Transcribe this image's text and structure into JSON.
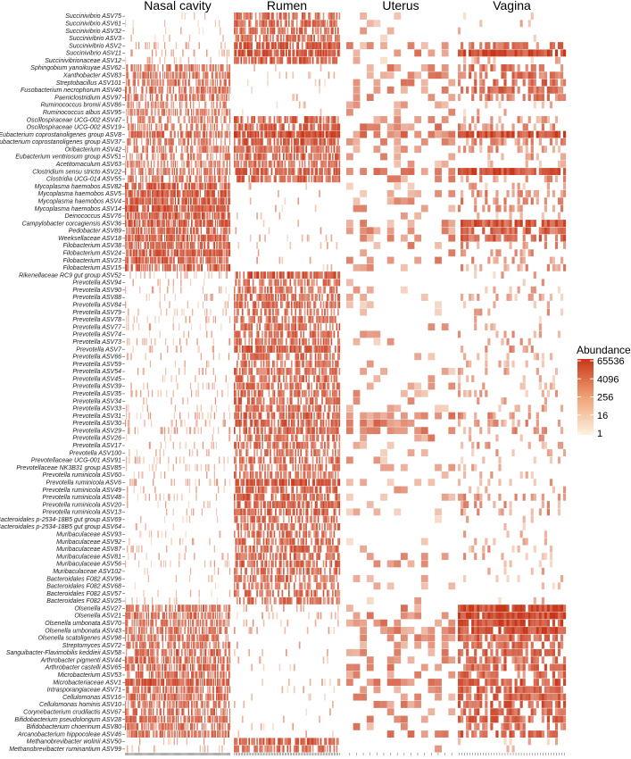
{
  "chart_data": {
    "type": "heatmap",
    "title": "",
    "xlabel": "",
    "ylabel": "",
    "panels": [
      {
        "name": "Nasal cavity",
        "columns": 110
      },
      {
        "name": "Rumen",
        "columns": 80
      },
      {
        "name": "Uterus",
        "columns": 16
      },
      {
        "name": "Vagina",
        "columns": 40
      }
    ],
    "rows": [
      "Succinivibrio ASV75",
      "Succinivibrio ASV61",
      "Succinivibrio ASV32",
      "Succinivibrio ASV3",
      "Succinivibrio ASV2",
      "Succinivibrio ASV11",
      "Succinivibrionaceae ASV12",
      "Sphingobium yanoikuyae ASV62",
      "Xanthobacter ASV83",
      "Streptobacillus ASV101",
      "Fusobacterium necrophorum ASV40",
      "Paeniclostridium ASV97",
      "Ruminococcus bromii ASV86",
      "Ruminococcus albus ASV95",
      "Oscillospiraceae UCG-002 ASV47",
      "Oscillospiraceae UCG-002 ASV19",
      "Eubacterium coprostanoligenes group ASV8",
      "Eubacterium coprostanoligenes group ASV37",
      "Oribacterium ASV42",
      "Eubacterium ventriosum group ASV51",
      "Acetitomaculum ASV63",
      "Clostridium sensu stricto ASV22",
      "Clostridia UCG-014 ASV55",
      "Mycoplasma haemobos ASV82",
      "Mycoplasma haemobos ASV5",
      "Mycoplasma haemobos ASV4",
      "Mycoplasma haemobos ASV14",
      "Deinococcus ASV76",
      "Campylobacter corcagiensis ASV36",
      "Pedobacter ASV89",
      "Weeksellaceae ASV18",
      "Filobacterium ASV38",
      "Filobacterium ASV24",
      "Filobacterium ASV23",
      "Filobacterium ASV15",
      "Rikenellaceae RC9 gut group ASV52",
      "Prevotella ASV94",
      "Prevotella ASV90",
      "Prevotella ASV88",
      "Prevotella ASV84",
      "Prevotella ASV79",
      "Prevotella ASV78",
      "Prevotella ASV77",
      "Prevotella ASV74",
      "Prevotella ASV73",
      "Prevotella ASV7",
      "Prevotella ASV66",
      "Prevotella ASV59",
      "Prevotella ASV54",
      "Prevotella ASV45",
      "Prevotella ASV39",
      "Prevotella ASV35",
      "Prevotella ASV34",
      "Prevotella ASV33",
      "Prevotella ASV31",
      "Prevotella ASV30",
      "Prevotella ASV29",
      "Prevotella ASV26",
      "Prevotella ASV17",
      "Prevotella ASV100",
      "Prevotellaceae UCG-001 ASV91",
      "Prevotellaceae NK3B31 group ASV85",
      "Prevotella ruminicola ASV60",
      "Prevotella ruminicola ASV6",
      "Prevotella ruminicola ASV49",
      "Prevotella ruminicola ASV48",
      "Prevotella ruminicola ASV20",
      "Prevotella ruminicola ASV13",
      "Bacteroidales p-2534-18B5 gut group ASV69",
      "Bacteroidales p-2534-18B5 gut group ASV64",
      "Muribaculaceae ASV93",
      "Muribaculaceae ASV92",
      "Muribaculaceae ASV87",
      "Muribaculaceae ASV81",
      "Muribaculaceae ASV56",
      "Muribaculaceae ASV102",
      "Bacteroidales F082 ASV96",
      "Bacteroidales F082 ASV68",
      "Bacteroidales F082 ASV57",
      "Bacteroidales F082 ASV25",
      "Olsenella ASV27",
      "Olsenella ASV21",
      "Olsenella umbonata ASV70",
      "Olsenella umbonata ASV43",
      "Olsenella scatoligenes ASV98",
      "Streptomyces ASV72",
      "Sanguibacter-Flavimobilis keddieii ASV58",
      "Arthrobacter pigmenti ASV44",
      "Arthrobacter castelli ASV65",
      "Microbacterium ASV53",
      "Microbacteriaceae ASV1",
      "Intrasporangiaceae ASV71",
      "Cellulomonas ASV16",
      "Cellulomonas hominis ASV10",
      "Corynebacterium crudilactis ASV67",
      "Bifidobacterium pseudolongum ASV28",
      "Bifidobacterium choerinum ASV80",
      "Arcanobacterium hippocoleae ASV46",
      "Methanobrevibacter wolinii ASV50",
      "Methanobrevibacter ruminantium ASV99"
    ],
    "legend": {
      "title": "Abundance",
      "ticks": [
        "65536",
        "4096",
        "256",
        "16",
        "1"
      ],
      "scale": "log2",
      "range": [
        1,
        65536
      ]
    },
    "colors": {
      "low": "#fbe9d6",
      "high": "#c8361a",
      "absent": "#ffffff"
    },
    "row_abundance": {
      "Nasal cavity": [
        0.05,
        0.05,
        0.05,
        0.05,
        0.15,
        0.2,
        0.1,
        0.6,
        0.6,
        0.6,
        0.6,
        0.6,
        0.5,
        0.5,
        0.5,
        0.5,
        0.65,
        0.55,
        0.55,
        0.5,
        0.5,
        0.6,
        0.55,
        0.8,
        0.8,
        0.8,
        0.8,
        0.75,
        0.75,
        0.75,
        0.75,
        0.75,
        0.75,
        0.75,
        0.75,
        0.1,
        0.1,
        0.1,
        0.1,
        0.1,
        0.1,
        0.1,
        0.1,
        0.1,
        0.1,
        0.15,
        0.1,
        0.1,
        0.1,
        0.1,
        0.1,
        0.1,
        0.1,
        0.1,
        0.15,
        0.15,
        0.15,
        0.1,
        0.1,
        0.1,
        0.1,
        0.1,
        0.1,
        0.15,
        0.1,
        0.1,
        0.1,
        0.1,
        0.05,
        0.05,
        0.05,
        0.05,
        0.1,
        0.1,
        0.1,
        0.05,
        0.05,
        0.05,
        0.05,
        0.05,
        0.65,
        0.65,
        0.6,
        0.6,
        0.6,
        0.6,
        0.65,
        0.65,
        0.65,
        0.65,
        0.8,
        0.65,
        0.65,
        0.65,
        0.65,
        0.65,
        0.6,
        0.65,
        0.1,
        0.1
      ],
      "Rumen": [
        0.65,
        0.65,
        0.65,
        0.65,
        0.85,
        0.85,
        0.7,
        0.05,
        0.05,
        0.05,
        0.05,
        0.05,
        0.05,
        0.05,
        0.7,
        0.7,
        0.9,
        0.75,
        0.7,
        0.7,
        0.65,
        0.75,
        0.7,
        0.05,
        0.05,
        0.05,
        0.05,
        0.05,
        0.05,
        0.05,
        0.05,
        0.05,
        0.05,
        0.05,
        0.05,
        0.8,
        0.6,
        0.65,
        0.65,
        0.65,
        0.6,
        0.6,
        0.65,
        0.65,
        0.65,
        0.75,
        0.6,
        0.6,
        0.6,
        0.65,
        0.65,
        0.65,
        0.65,
        0.65,
        0.7,
        0.7,
        0.7,
        0.65,
        0.65,
        0.6,
        0.6,
        0.6,
        0.6,
        0.85,
        0.7,
        0.7,
        0.7,
        0.7,
        0.6,
        0.6,
        0.6,
        0.6,
        0.65,
        0.65,
        0.65,
        0.6,
        0.6,
        0.6,
        0.6,
        0.6,
        0.1,
        0.1,
        0.1,
        0.1,
        0.05,
        0.05,
        0.05,
        0.05,
        0.05,
        0.05,
        0.05,
        0.05,
        0.05,
        0.05,
        0.05,
        0.05,
        0.05,
        0.05,
        0.7,
        0.6
      ],
      "Uterus": [
        0.05,
        0.05,
        0.05,
        0.1,
        0.3,
        0.35,
        0.1,
        0.35,
        0.35,
        0.35,
        0.35,
        0.35,
        0.2,
        0.2,
        0.3,
        0.4,
        0.5,
        0.3,
        0.35,
        0.3,
        0.25,
        0.5,
        0.3,
        0.1,
        0.2,
        0.2,
        0.2,
        0.1,
        0.3,
        0.3,
        0.3,
        0.3,
        0.3,
        0.3,
        0.3,
        0.1,
        0.1,
        0.1,
        0.2,
        0.15,
        0.1,
        0.1,
        0.15,
        0.15,
        0.15,
        0.2,
        0.15,
        0.15,
        0.15,
        0.15,
        0.2,
        0.2,
        0.2,
        0.2,
        0.4,
        0.45,
        0.45,
        0.35,
        0.2,
        0.15,
        0.15,
        0.15,
        0.1,
        0.2,
        0.1,
        0.15,
        0.2,
        0.2,
        0.1,
        0.1,
        0.1,
        0.1,
        0.25,
        0.3,
        0.2,
        0.1,
        0.1,
        0.05,
        0.05,
        0.05,
        0.4,
        0.4,
        0.4,
        0.4,
        0.3,
        0.3,
        0.4,
        0.35,
        0.35,
        0.3,
        0.45,
        0.4,
        0.4,
        0.4,
        0.35,
        0.4,
        0.35,
        0.4,
        0.15,
        0.1
      ],
      "Vagina": [
        0.05,
        0.05,
        0.05,
        0.05,
        0.6,
        0.9,
        0.15,
        0.6,
        0.6,
        0.6,
        0.6,
        0.55,
        0.1,
        0.1,
        0.3,
        0.35,
        0.9,
        0.35,
        0.3,
        0.3,
        0.2,
        0.9,
        0.3,
        0.2,
        0.4,
        0.4,
        0.35,
        0.2,
        0.8,
        0.7,
        0.7,
        0.3,
        0.3,
        0.3,
        0.3,
        0.1,
        0.15,
        0.15,
        0.15,
        0.15,
        0.15,
        0.1,
        0.2,
        0.2,
        0.15,
        0.3,
        0.15,
        0.15,
        0.15,
        0.15,
        0.2,
        0.2,
        0.2,
        0.2,
        0.3,
        0.3,
        0.3,
        0.2,
        0.2,
        0.15,
        0.15,
        0.15,
        0.1,
        0.15,
        0.1,
        0.3,
        0.3,
        0.3,
        0.1,
        0.1,
        0.1,
        0.1,
        0.2,
        0.2,
        0.15,
        0.1,
        0.1,
        0.05,
        0.05,
        0.05,
        0.95,
        0.95,
        0.9,
        0.9,
        0.7,
        0.6,
        0.7,
        0.6,
        0.65,
        0.6,
        0.8,
        0.7,
        0.7,
        0.7,
        0.65,
        0.7,
        0.55,
        0.7,
        0.05,
        0.05
      ]
    }
  }
}
